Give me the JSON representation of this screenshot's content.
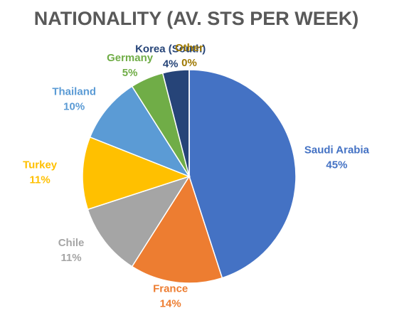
{
  "chart_data": {
    "type": "pie",
    "title": "NATIONALITY (AV. STS PER WEEK)",
    "categories": [
      "Saudi Arabia",
      "France",
      "Chile",
      "Turkey",
      "Thailand",
      "Germany",
      "Korea (South)",
      "Other"
    ],
    "values": [
      45,
      14,
      11,
      11,
      10,
      5,
      4,
      0
    ],
    "value_labels": [
      "45%",
      "14%",
      "11%",
      "11%",
      "10%",
      "5%",
      "4%",
      "0%"
    ],
    "colors": [
      "#4472c4",
      "#ed7d31",
      "#a5a5a5",
      "#ffc000",
      "#5b9bd5",
      "#70ad47",
      "#264478",
      "#9e7800"
    ]
  }
}
